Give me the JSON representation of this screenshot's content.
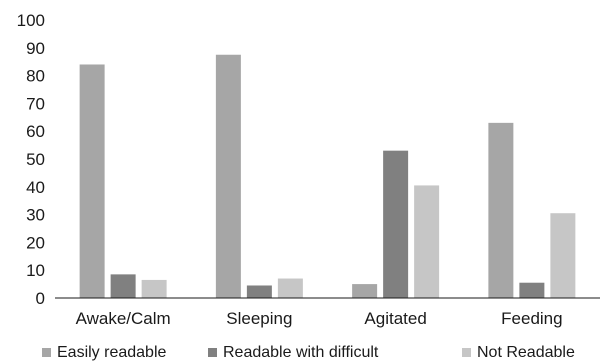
{
  "chart_data": {
    "type": "bar",
    "title": "",
    "xlabel": "",
    "ylabel": "",
    "ylim": [
      0,
      100
    ],
    "yticks": [
      0,
      10,
      20,
      30,
      40,
      50,
      60,
      70,
      80,
      90,
      100
    ],
    "grid": false,
    "legend": "bottom",
    "categories": [
      "Awake/Calm",
      "Sleeping",
      "Agitated",
      "Feeding"
    ],
    "series": [
      {
        "name": "Easily readable",
        "color": "#a6a6a6",
        "values": [
          84,
          87.5,
          5,
          63
        ]
      },
      {
        "name": "Readable with difficult",
        "color": "#808080",
        "values": [
          8.5,
          4.5,
          53,
          5.5
        ]
      },
      {
        "name": "Not Readable",
        "color": "#c6c6c6",
        "values": [
          6.5,
          7,
          40.5,
          30.5
        ]
      }
    ]
  }
}
